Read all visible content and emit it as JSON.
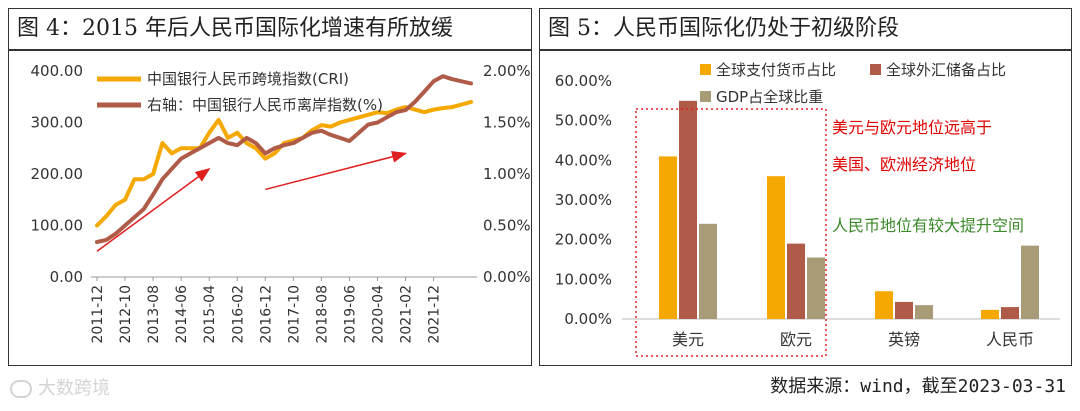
{
  "footer": {
    "source": "数据来源：wind，截至2023-03-31",
    "watermark": "大数跨境"
  },
  "chart_data": [
    {
      "id": "fig4",
      "type": "line",
      "title": "图 4：2015 年后人民币国际化增速有所放缓",
      "x": [
        "2011-12",
        "2012-03",
        "2012-06",
        "2012-10",
        "2013-01",
        "2013-04",
        "2013-08",
        "2013-11",
        "2014-02",
        "2014-06",
        "2014-09",
        "2014-12",
        "2015-04",
        "2015-07",
        "2015-10",
        "2016-02",
        "2016-05",
        "2016-09",
        "2016-12",
        "2017-03",
        "2017-06",
        "2017-10",
        "2018-01",
        "2018-04",
        "2018-08",
        "2018-11",
        "2019-02",
        "2019-06",
        "2019-09",
        "2019-12",
        "2020-04",
        "2020-07",
        "2020-10",
        "2021-02",
        "2021-05",
        "2021-09",
        "2021-12",
        "2022-03",
        "2022-06",
        "2022-10",
        "2022-12"
      ],
      "xticks": [
        "2011-12",
        "2012-10",
        "2013-08",
        "2014-06",
        "2015-04",
        "2016-02",
        "2016-12",
        "2017-10",
        "2018-08",
        "2019-06",
        "2020-04",
        "2021-02",
        "2021-12"
      ],
      "ylim_left": [
        0,
        400
      ],
      "yticks_left": [
        "0.00",
        "100.00",
        "200.00",
        "300.00",
        "400.00"
      ],
      "ylim_right": [
        0,
        2
      ],
      "yticks_right": [
        "0.00%",
        "0.50%",
        "1.00%",
        "1.50%",
        "2.00%"
      ],
      "series": [
        {
          "name": "中国银行人民币跨境指数(CRI)",
          "axis": "left",
          "color": "#f5a800",
          "values": [
            100,
            118,
            140,
            150,
            190,
            190,
            200,
            260,
            240,
            250,
            250,
            250,
            280,
            305,
            270,
            280,
            260,
            250,
            230,
            240,
            260,
            265,
            270,
            285,
            295,
            292,
            300,
            305,
            310,
            315,
            320,
            318,
            325,
            330,
            325,
            320,
            325,
            328,
            330,
            335,
            340
          ]
        },
        {
          "name": "右轴：中国银行人民币离岸指数(%)",
          "axis": "right",
          "color": "#b05a48",
          "values": [
            0.34,
            0.36,
            0.42,
            0.5,
            0.58,
            0.66,
            0.8,
            0.95,
            1.05,
            1.15,
            1.2,
            1.25,
            1.3,
            1.35,
            1.3,
            1.28,
            1.35,
            1.3,
            1.2,
            1.25,
            1.28,
            1.3,
            1.35,
            1.4,
            1.42,
            1.38,
            1.35,
            1.32,
            1.4,
            1.48,
            1.5,
            1.55,
            1.6,
            1.62,
            1.7,
            1.8,
            1.9,
            1.95,
            1.92,
            1.9,
            1.88
          ]
        }
      ],
      "arrows": [
        {
          "from": [
            "2011-12",
            0.25
          ],
          "to": [
            "2015-04",
            1.05
          ]
        },
        {
          "from": [
            "2016-12",
            0.85
          ],
          "to": [
            "2021-02",
            1.2
          ]
        }
      ]
    },
    {
      "id": "fig5",
      "type": "bar",
      "title": "图 5：人民币国际化仍处于初级阶段",
      "categories": [
        "美元",
        "欧元",
        "英镑",
        "人民币"
      ],
      "ylim": [
        0,
        60
      ],
      "yticks": [
        "0.00%",
        "10.00%",
        "20.00%",
        "30.00%",
        "40.00%",
        "50.00%",
        "60.00%"
      ],
      "series": [
        {
          "name": "全球支付货币占比",
          "color": "#f5a800",
          "values": [
            41,
            36,
            7,
            2.3
          ]
        },
        {
          "name": "全球外汇储备占比",
          "color": "#b05a48",
          "values": [
            55,
            19,
            4.3,
            3
          ]
        },
        {
          "name": "GDP占全球比重",
          "color": "#a89c78",
          "values": [
            24,
            15.5,
            3.5,
            18.5
          ]
        }
      ],
      "annotations": [
        {
          "text": "美元与欧元地位远高于",
          "color": "#e00000"
        },
        {
          "text": "美国、欧洲经济地位",
          "color": "#e00000"
        },
        {
          "text": "人民币地位有较大提升空间",
          "color": "#3a8a2a"
        }
      ]
    }
  ]
}
